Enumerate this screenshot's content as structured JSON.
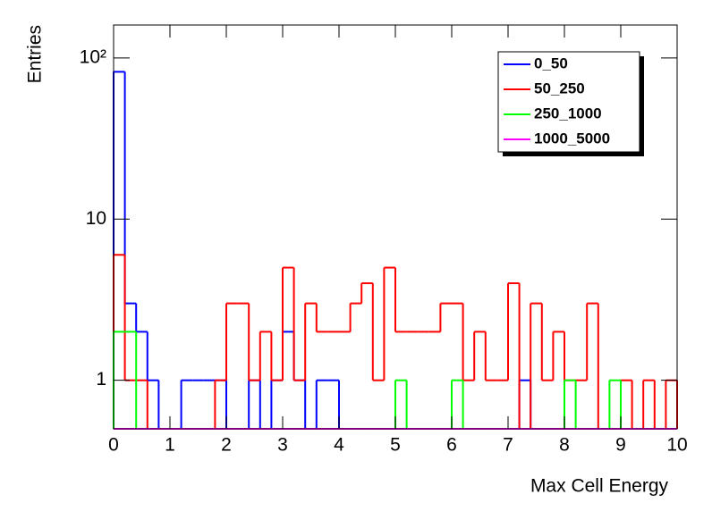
{
  "chart_data": {
    "type": "histogram",
    "x_label": "Max Cell Energy",
    "y_label": "Entries",
    "bins": [
      0,
      0.2,
      0.4,
      0.6,
      0.8,
      1,
      1.2,
      1.4,
      1.6,
      1.8,
      2,
      2.2,
      2.4,
      2.6,
      2.8,
      3,
      3.2,
      3.4,
      3.6,
      3.8,
      4,
      4.2,
      4.4,
      4.6,
      4.8,
      5,
      5.2,
      5.4,
      5.6,
      5.8,
      6,
      6.2,
      6.4,
      6.6,
      6.8,
      7,
      7.2,
      7.4,
      7.6,
      7.8,
      8,
      8.2,
      8.4,
      8.6,
      8.8,
      9,
      9.2,
      9.4,
      9.6,
      9.8,
      10
    ],
    "series": [
      {
        "name": "0_50",
        "color": "#0000ff",
        "values": [
          82,
          3,
          2,
          1,
          0,
          0,
          1,
          1,
          1,
          1,
          0,
          0,
          1,
          0,
          1,
          2,
          1,
          0,
          1,
          1,
          0,
          0,
          0,
          0,
          0,
          0,
          0,
          0,
          0,
          0,
          0,
          0,
          0,
          0,
          0,
          0,
          1,
          0,
          0,
          0,
          0,
          0,
          0,
          0,
          0,
          0,
          0,
          0,
          0,
          0
        ]
      },
      {
        "name": "50_250",
        "color": "#ff0000",
        "values": [
          6,
          1,
          1,
          0,
          0,
          0,
          0,
          0,
          0,
          1,
          3,
          3,
          1,
          2,
          1,
          5,
          1,
          3,
          2,
          2,
          2,
          3,
          4,
          1,
          5,
          2,
          2,
          2,
          2,
          3,
          3,
          1,
          2,
          1,
          1,
          4,
          0,
          3,
          1,
          2,
          1,
          1,
          3,
          0,
          0,
          1,
          0,
          1,
          0,
          1
        ]
      },
      {
        "name": "250_1000",
        "color": "#00ff00",
        "values": [
          2,
          2,
          0,
          0,
          0,
          0,
          0,
          0,
          0,
          0,
          0,
          0,
          0,
          0,
          0,
          0,
          0,
          0,
          0,
          0,
          0,
          0,
          0,
          0,
          0,
          1,
          0,
          0,
          0,
          0,
          1,
          0,
          0,
          0,
          0,
          0,
          0,
          0,
          0,
          0,
          1,
          0,
          0,
          0,
          1,
          0,
          0,
          0,
          0,
          0
        ]
      },
      {
        "name": "1000_5000",
        "color": "#ff00ff",
        "values": [
          0,
          0,
          0,
          0,
          0,
          0,
          0,
          0,
          0,
          0,
          0,
          0,
          0,
          0,
          0,
          0,
          0,
          0,
          0,
          0,
          0,
          0,
          0,
          0,
          0,
          0,
          0,
          0,
          0,
          0,
          0,
          0,
          0,
          0,
          0,
          0,
          0,
          0,
          0,
          0,
          0,
          0,
          0,
          0,
          0,
          0,
          0,
          0,
          0,
          0
        ]
      }
    ],
    "xlim": [
      0,
      10
    ],
    "xticks": [
      0,
      1,
      2,
      3,
      4,
      5,
      6,
      7,
      8,
      9,
      10
    ],
    "ylim": [
      0.5,
      160
    ],
    "yticks": [
      1,
      10,
      {
        "value": 100,
        "label": "10²"
      }
    ],
    "ylog": true,
    "legend": "top-right"
  }
}
